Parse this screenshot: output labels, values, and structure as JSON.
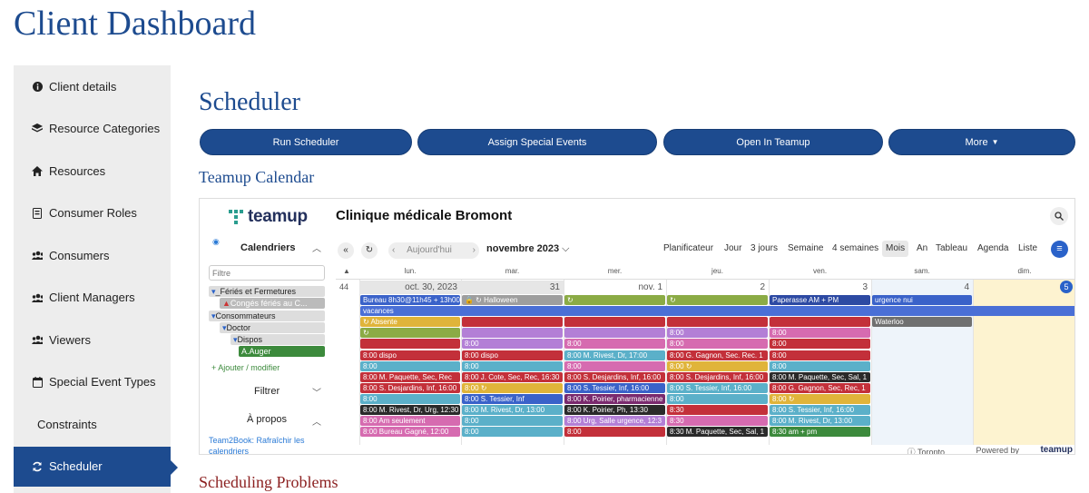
{
  "page": {
    "title": "Client Dashboard",
    "heading": "Scheduler",
    "subheading": "Teamup Calendar",
    "problems_heading": "Scheduling Problems"
  },
  "sidebar": {
    "items": [
      {
        "label": "Client details",
        "icon": "info-circle-icon"
      },
      {
        "label": "Resource Categories",
        "icon": "layers-icon"
      },
      {
        "label": "Resources",
        "icon": "home-icon"
      },
      {
        "label": "Consumer Roles",
        "icon": "id-card-icon"
      },
      {
        "label": "Consumers",
        "icon": "users-icon"
      },
      {
        "label": "Client Managers",
        "icon": "users-icon"
      },
      {
        "label": "Viewers",
        "icon": "users-icon"
      },
      {
        "label": "Special Event Types",
        "icon": "calendar-icon"
      },
      {
        "label": "Constraints",
        "icon": ""
      },
      {
        "label": "Scheduler",
        "icon": "sync-icon"
      }
    ]
  },
  "buttons": {
    "run": "Run Scheduler",
    "assign": "Assign Special Events",
    "open": "Open In Teamup",
    "more": "More"
  },
  "calendar": {
    "logo": "teamup",
    "title": "Clinique médicale Bromont",
    "calendars_label": "Calendriers",
    "filter_placeholder": "Filtre",
    "tree": [
      {
        "label": "_Fériés et Fermetures"
      },
      {
        "label": "Congés fériés au C..."
      },
      {
        "label": "Consommateurs"
      },
      {
        "label": "Doctor"
      },
      {
        "label": "Dispos"
      },
      {
        "label": "A.Auger"
      }
    ],
    "add_modify": "+ Ajouter / modifier",
    "filter_label": "Filtrer",
    "about_label": "À propos",
    "about_link": "Team2Book: Rafraîchir les calendriers",
    "today": "Aujourd'hui",
    "month": "novembre 2023",
    "views": [
      "Planificateur",
      "Jour",
      "3 jours",
      "Semaine",
      "4 semaines",
      "Mois",
      "An",
      "Tableau",
      "Agenda",
      "Liste"
    ],
    "active_view": "Mois",
    "weekdays": [
      "lun.",
      "mar.",
      "mer.",
      "jeu.",
      "ven.",
      "sam.",
      "dim."
    ],
    "week_number": "44",
    "day_numbers": [
      "oct. 30, 2023",
      "31",
      "nov. 1",
      "2",
      "3",
      "4",
      "5"
    ],
    "events": [
      {
        "col": 0,
        "row": 0,
        "span": 1,
        "text": "Bureau 8h30@11h45 + 13h00",
        "color": "#3a62c9"
      },
      {
        "col": 1,
        "row": 0,
        "span": 1,
        "text": "🔒 ↻ Halloween",
        "color": "#9e9e9e"
      },
      {
        "col": 2,
        "row": 0,
        "span": 1,
        "text": "↻",
        "color": "#8bab45"
      },
      {
        "col": 3,
        "row": 0,
        "span": 1,
        "text": "↻",
        "color": "#8bab45"
      },
      {
        "col": 4,
        "row": 0,
        "span": 1,
        "text": "Paperasse AM + PM",
        "color": "#2d4aa3"
      },
      {
        "col": 5,
        "row": 0,
        "span": 1,
        "text": "urgence nui",
        "color": "#3a62c9"
      },
      {
        "col": 0,
        "row": 1,
        "span": 7,
        "text": "vacances",
        "color": "#4a6fd6"
      },
      {
        "col": 0,
        "row": 2,
        "span": 1,
        "text": "↻ Absente",
        "color": "#e0b43a"
      },
      {
        "col": 1,
        "row": 2,
        "span": 1,
        "text": "",
        "color": "#c3303a"
      },
      {
        "col": 2,
        "row": 2,
        "span": 1,
        "text": "",
        "color": "#c3303a"
      },
      {
        "col": 3,
        "row": 2,
        "span": 1,
        "text": "",
        "color": "#c3303a"
      },
      {
        "col": 4,
        "row": 2,
        "span": 1,
        "text": "",
        "color": "#c3303a"
      },
      {
        "col": 5,
        "row": 2,
        "span": 1,
        "text": "Waterloo",
        "color": "#707070"
      },
      {
        "col": 0,
        "row": 3,
        "span": 1,
        "text": "↻",
        "color": "#8bab45"
      },
      {
        "col": 1,
        "row": 3,
        "span": 1,
        "text": "",
        "color": "#b37fd6"
      },
      {
        "col": 2,
        "row": 3,
        "span": 1,
        "text": "",
        "color": "#b37fd6"
      },
      {
        "col": 3,
        "row": 3,
        "span": 1,
        "text": "8:00",
        "color": "#b37fd6"
      },
      {
        "col": 4,
        "row": 3,
        "span": 1,
        "text": "8:00",
        "color": "#d66bb0"
      },
      {
        "col": 0,
        "row": 4,
        "span": 1,
        "text": "",
        "color": "#c3303a"
      },
      {
        "col": 1,
        "row": 4,
        "span": 1,
        "text": "8:00",
        "color": "#b37fd6"
      },
      {
        "col": 2,
        "row": 4,
        "span": 1,
        "text": "8:00",
        "color": "#d66bb0"
      },
      {
        "col": 3,
        "row": 4,
        "span": 1,
        "text": "8:00",
        "color": "#d66bb0"
      },
      {
        "col": 4,
        "row": 4,
        "span": 1,
        "text": "8:00",
        "color": "#c3303a"
      },
      {
        "col": 0,
        "row": 5,
        "span": 1,
        "text": "8:00 dispo",
        "color": "#c3303a"
      },
      {
        "col": 1,
        "row": 5,
        "span": 1,
        "text": "8:00 dispo",
        "color": "#c3303a"
      },
      {
        "col": 2,
        "row": 5,
        "span": 1,
        "text": "8:00 M. Rivest, Dr, 17:00",
        "color": "#5bb0c9"
      },
      {
        "col": 3,
        "row": 5,
        "span": 1,
        "text": "8:00 G. Gagnon, Sec. Rec. 1",
        "color": "#c3303a"
      },
      {
        "col": 4,
        "row": 5,
        "span": 1,
        "text": "8:00",
        "color": "#c3303a"
      },
      {
        "col": 0,
        "row": 6,
        "span": 1,
        "text": "8:00",
        "color": "#5bb0c9"
      },
      {
        "col": 1,
        "row": 6,
        "span": 1,
        "text": "8:00",
        "color": "#5bb0c9"
      },
      {
        "col": 2,
        "row": 6,
        "span": 1,
        "text": "8:00",
        "color": "#d66bb0"
      },
      {
        "col": 3,
        "row": 6,
        "span": 1,
        "text": "8:00 ↻",
        "color": "#e0b43a"
      },
      {
        "col": 4,
        "row": 6,
        "span": 1,
        "text": "8:00",
        "color": "#5bb0c9"
      },
      {
        "col": 0,
        "row": 7,
        "span": 1,
        "text": "8:00 M. Paquette, Sec, Rec",
        "color": "#c3303a"
      },
      {
        "col": 1,
        "row": 7,
        "span": 1,
        "text": "8:00 J. Cote, Sec, Rec, 16:30",
        "color": "#c3303a"
      },
      {
        "col": 2,
        "row": 7,
        "span": 1,
        "text": "8:00 S. Desjardins, Inf, 16:00",
        "color": "#c3303a"
      },
      {
        "col": 3,
        "row": 7,
        "span": 1,
        "text": "8:00 S. Desjardins, Inf, 16:00",
        "color": "#c3303a"
      },
      {
        "col": 4,
        "row": 7,
        "span": 1,
        "text": "8:00 M. Paquette, Sec, Sal, 1",
        "color": "#2a2a2a"
      },
      {
        "col": 0,
        "row": 8,
        "span": 1,
        "text": "8:00 S. Desjardins, Inf, 16:00",
        "color": "#c3303a"
      },
      {
        "col": 1,
        "row": 8,
        "span": 1,
        "text": "8:00 ↻",
        "color": "#e0b43a"
      },
      {
        "col": 2,
        "row": 8,
        "span": 1,
        "text": "8:00 S. Tessier, Inf, 16:00",
        "color": "#3a62c9"
      },
      {
        "col": 3,
        "row": 8,
        "span": 1,
        "text": "8:00 S. Tessier, Inf, 16:00",
        "color": "#5bb0c9"
      },
      {
        "col": 4,
        "row": 8,
        "span": 1,
        "text": "8:00 G. Gagnon, Sec, Rec, 1",
        "color": "#c3303a"
      },
      {
        "col": 0,
        "row": 9,
        "span": 1,
        "text": "8:00",
        "color": "#5bb0c9"
      },
      {
        "col": 1,
        "row": 9,
        "span": 1,
        "text": "8:00 S. Tessier, Inf",
        "color": "#3a62c9"
      },
      {
        "col": 2,
        "row": 9,
        "span": 1,
        "text": "8:00 K. Poirier, pharmacienne",
        "color": "#7a2a6e"
      },
      {
        "col": 3,
        "row": 9,
        "span": 1,
        "text": "8:00",
        "color": "#5bb0c9"
      },
      {
        "col": 4,
        "row": 9,
        "span": 1,
        "text": "8:00 ↻",
        "color": "#e0b43a"
      },
      {
        "col": 0,
        "row": 10,
        "span": 1,
        "text": "8:00 M. Rivest, Dr, Urg, 12:30",
        "color": "#2a2a2a"
      },
      {
        "col": 1,
        "row": 10,
        "span": 1,
        "text": "8:00 M. Rivest, Dr, 13:00",
        "color": "#5bb0c9"
      },
      {
        "col": 2,
        "row": 10,
        "span": 1,
        "text": "8:00 K. Poirier, Ph, 13:30",
        "color": "#2a2a2a"
      },
      {
        "col": 3,
        "row": 10,
        "span": 1,
        "text": "8:30",
        "color": "#c3303a"
      },
      {
        "col": 4,
        "row": 10,
        "span": 1,
        "text": "8:00 S. Tessier, Inf, 16:00",
        "color": "#5bb0c9"
      },
      {
        "col": 0,
        "row": 11,
        "span": 1,
        "text": "8:00 Am seulement",
        "color": "#d66bb0"
      },
      {
        "col": 1,
        "row": 11,
        "span": 1,
        "text": "8:00",
        "color": "#5bb0c9"
      },
      {
        "col": 2,
        "row": 11,
        "span": 1,
        "text": "8:00 Urg, Salle urgence, 12:3",
        "color": "#b37fd6"
      },
      {
        "col": 3,
        "row": 11,
        "span": 1,
        "text": "8:30",
        "color": "#d66bb0"
      },
      {
        "col": 4,
        "row": 11,
        "span": 1,
        "text": "8:00 M. Rivest, Dr, 13:00",
        "color": "#5bb0c9"
      },
      {
        "col": 0,
        "row": 12,
        "span": 1,
        "text": "8:00 Bureau Gagné, 12:00",
        "color": "#d66bb0"
      },
      {
        "col": 1,
        "row": 12,
        "span": 1,
        "text": "8:00",
        "color": "#5bb0c9"
      },
      {
        "col": 2,
        "row": 12,
        "span": 1,
        "text": "8:00",
        "color": "#c3303a"
      },
      {
        "col": 3,
        "row": 12,
        "span": 1,
        "text": "8:30 M. Paquette, Sec, Sal, 1",
        "color": "#2a2a2a"
      },
      {
        "col": 4,
        "row": 12,
        "span": 1,
        "text": "8:30 am + pm",
        "color": "#3c8a3c"
      }
    ],
    "timezone": "Toronto",
    "powered_by": "Powered by",
    "footer_logo": "teamup"
  }
}
